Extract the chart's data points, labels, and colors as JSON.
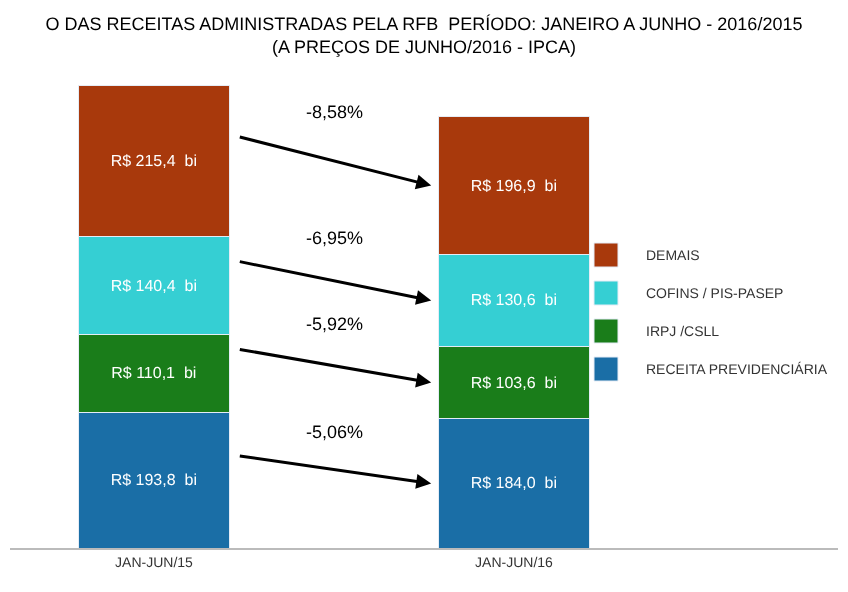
{
  "chart_data": {
    "type": "bar",
    "stacked": true,
    "title": "O DAS RECEITAS ADMINISTRADAS PELA RFB  PERÍODO: JANEIRO A JUNHO - 2016/2015",
    "subtitle": "(A PREÇOS DE JUNHO/2016 - IPCA)",
    "categories": [
      "JAN-JUN/15",
      "JAN-JUN/16"
    ],
    "series": [
      {
        "name": "RECEITA PREVIDENCIÁRIA",
        "color": "#1a6ea6",
        "values": [
          193.8,
          184.0
        ],
        "value_labels": [
          "R$ 193,8  bi",
          "R$ 184,0  bi"
        ]
      },
      {
        "name": "IRPJ /CSLL",
        "color": "#1a7d1a",
        "values": [
          110.1,
          103.6
        ],
        "value_labels": [
          "R$ 110,1  bi",
          "R$ 103,6  bi"
        ]
      },
      {
        "name": "COFINS / PIS-PASEP",
        "color": "#35cfd3",
        "values": [
          140.4,
          130.6
        ],
        "value_labels": [
          "R$ 140,4  bi",
          "R$ 130,6  bi"
        ]
      },
      {
        "name": "DEMAIS",
        "color": "#a8390c",
        "values": [
          215.4,
          196.9
        ],
        "value_labels": [
          "R$ 215,4  bi",
          "R$ 196,9  bi"
        ]
      }
    ],
    "annotations": [
      "-5,06%",
      "-5,92%",
      "-6,95%",
      "-8,58%"
    ],
    "legend": "right"
  }
}
